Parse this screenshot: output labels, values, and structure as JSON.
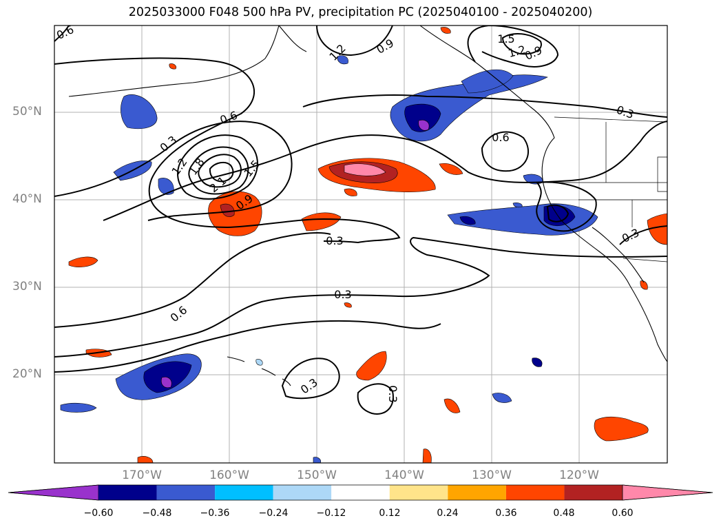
{
  "title": "2025033000 F048 500 hPa PV, precipitation PC (2025040100 - 2025040200)",
  "axes": {
    "lat_labels": [
      "50°N",
      "40°N",
      "30°N",
      "20°N"
    ],
    "lon_labels": [
      "170°W",
      "160°W",
      "150°W",
      "140°W",
      "130°W",
      "120°W"
    ],
    "lon_range": [
      -180,
      -110
    ],
    "lat_range": [
      10,
      60
    ],
    "grid": true
  },
  "contour_labels": [
    "0.6",
    "1.2",
    "0.9",
    "1.5",
    "1.2",
    "0.9",
    "0.3",
    "0.6",
    "0.3",
    "1.2",
    "1.8",
    "2.1",
    "1.5",
    "0.9",
    "0.3",
    "0.3",
    "0.6",
    "0.3",
    "0.3",
    "0.3",
    "0.6"
  ],
  "colorbar": {
    "ticks": [
      "−0.60",
      "−0.48",
      "−0.36",
      "−0.24",
      "−0.12",
      "0.12",
      "0.24",
      "0.36",
      "0.48",
      "0.60"
    ],
    "colors": [
      "#9932cc",
      "#00008b",
      "#3a5ad0",
      "#00bfff",
      "#add8f7",
      "#ffffff",
      "#ffe48a",
      "#ffa500",
      "#ff4500",
      "#b22222",
      "#ff88aa"
    ]
  },
  "colors": {
    "contour": "#000000",
    "coastline": "#000000",
    "grid": "#b0b0b0"
  }
}
